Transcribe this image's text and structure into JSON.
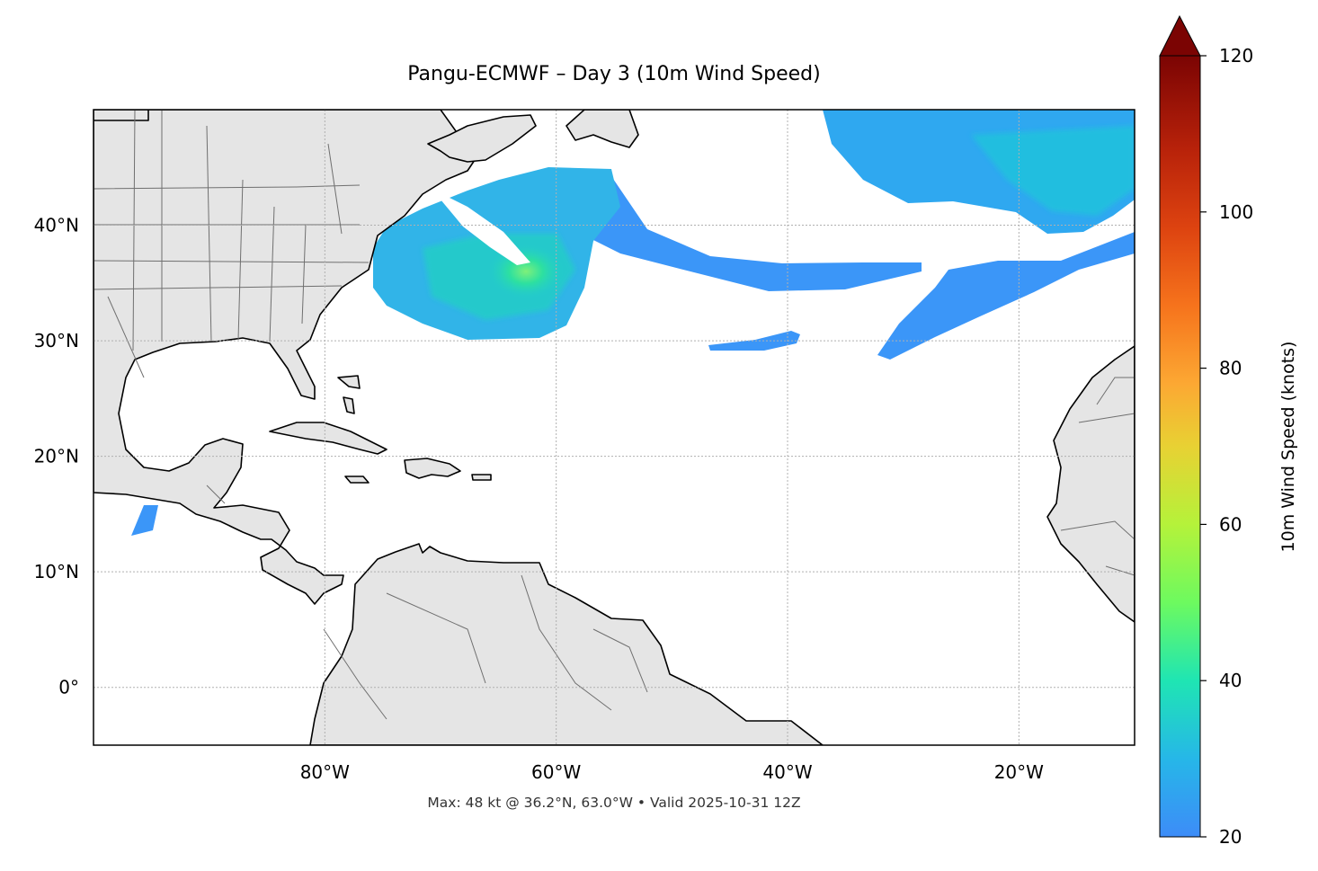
{
  "title": "Pangu-ECMWF – Day 3 (10m Wind Speed)",
  "footer": "Max: 48 kt @ 36.2°N, 63.0°W • Valid 2025-10-31 12Z",
  "map": {
    "lat_labels": [
      "40°N",
      "30°N",
      "20°N",
      "10°N",
      "0°"
    ],
    "lon_labels": [
      "80°W",
      "60°W",
      "40°W",
      "20°W"
    ],
    "lat_values": [
      40,
      30,
      20,
      10,
      0
    ],
    "lon_values": [
      -80,
      -60,
      -40,
      -20
    ],
    "lat_range": [
      -5,
      50
    ],
    "lon_range": [
      -100,
      -10
    ],
    "gridlines": true,
    "land_color": "#e5e5e5",
    "coast_color": "#000000",
    "border_color": "#707070",
    "max_marker": {
      "lat": 36.2,
      "lon": -63.0,
      "speed_kt": 48
    }
  },
  "colorbar": {
    "label": "10m Wind Speed (knots)",
    "min": 20,
    "max": 120,
    "ticks": [
      20,
      40,
      60,
      80,
      100,
      120
    ],
    "extend": "max",
    "colormap": "turbo"
  }
}
